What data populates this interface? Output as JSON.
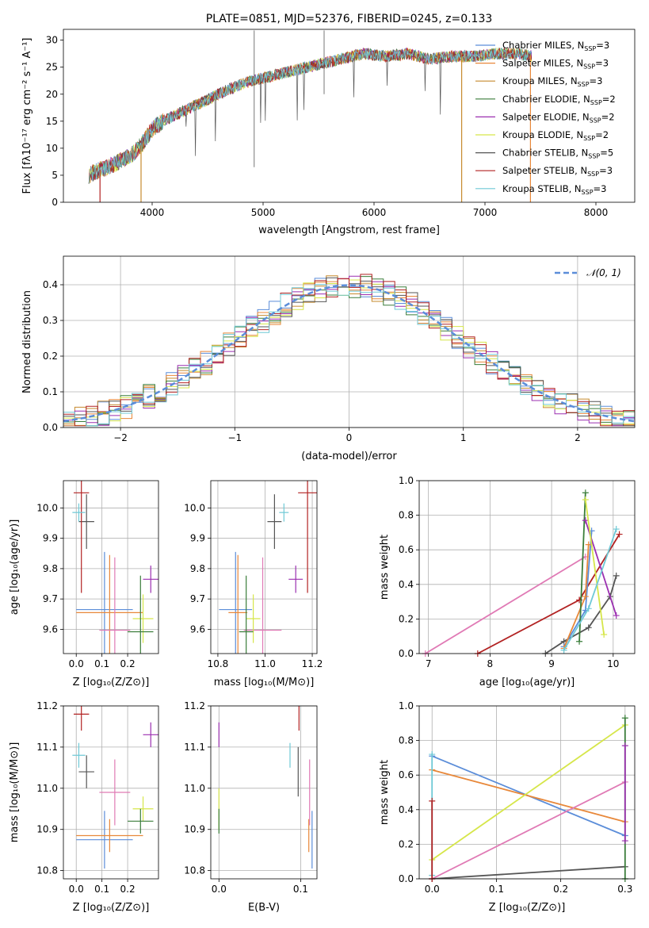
{
  "colors": {
    "Chabrier MILES": "#5b8dd9",
    "Salpeter MILES": "#e8883a",
    "Kroupa MILES": "#c68a2e",
    "Chabrier ELODIE": "#3a7d3a",
    "Salpeter ELODIE": "#9b2fb0",
    "Kroupa ELODIE": "#d6e64a",
    "Chabrier STELIB": "#555555",
    "Salpeter STELIB": "#b22222",
    "Kroupa STELIB": "#6fc9d6",
    "pink": "#e07ab5",
    "normal": "#5b8dd9",
    "grid": "#b0b0b0"
  },
  "chart_data": [
    {
      "id": "spectrum",
      "type": "line",
      "title": "PLATE=0851, MJD=52376, FIBERID=0245, z=0.133",
      "xlabel": "wavelength [Angstrom, rest frame]",
      "ylabel": "Flux [fλ10⁻¹⁷ erg cm⁻² s⁻¹ A⁻¹]",
      "xlim": [
        3200,
        8350
      ],
      "ylim": [
        0,
        32
      ],
      "xticks": [
        4000,
        5000,
        6000,
        7000,
        8000
      ],
      "yticks": [
        0,
        5,
        10,
        15,
        20,
        25,
        30
      ],
      "continuum": [
        [
          3430,
          5.0
        ],
        [
          3500,
          5.8
        ],
        [
          3600,
          6.5
        ],
        [
          3700,
          7.5
        ],
        [
          3800,
          8.5
        ],
        [
          3900,
          10.5
        ],
        [
          4000,
          13.5
        ],
        [
          4100,
          15
        ],
        [
          4200,
          16
        ],
        [
          4300,
          17
        ],
        [
          4500,
          19
        ],
        [
          4700,
          21
        ],
        [
          4900,
          22.5
        ],
        [
          5100,
          23.5
        ],
        [
          5300,
          24.5
        ],
        [
          5500,
          25.5
        ],
        [
          5700,
          26.5
        ],
        [
          5900,
          27.5
        ],
        [
          6100,
          27
        ],
        [
          6300,
          27.5
        ],
        [
          6500,
          26.5
        ],
        [
          6700,
          27
        ],
        [
          6900,
          27
        ],
        [
          7100,
          27.5
        ],
        [
          7300,
          27.5
        ],
        [
          7420,
          27
        ]
      ],
      "series_names": [
        "Chabrier MILES, N_SSP=3",
        "Salpeter MILES, N_SSP=3",
        "Kroupa MILES, N_SSP=3",
        "Chabrier ELODIE, N_SSP=2",
        "Salpeter ELODIE, N_SSP=2",
        "Kroupa ELODIE, N_SSP=2",
        "Chabrier STELIB, N_SSP=5",
        "Salpeter STELIB, N_SSP=3",
        "Kroupa STELIB, N_SSP=3"
      ]
    },
    {
      "id": "hist",
      "type": "histogram",
      "xlabel": "(data-model)/error",
      "ylabel": "Normed distribution",
      "xlim": [
        -2.5,
        2.5
      ],
      "ylim": [
        0,
        0.48
      ],
      "xticks": [
        -2,
        -1,
        0,
        1,
        2
      ],
      "yticks": [
        0.0,
        0.1,
        0.2,
        0.3,
        0.4
      ],
      "legend": "𝒩(0, 1)",
      "bin_width": 0.1
    },
    {
      "id": "age-vs-z",
      "type": "errorbar",
      "xlabel": "Z [log₁₀(Z/Z⊙)]",
      "ylabel": "age  [log₁₀(age/yr)]",
      "xlim": [
        -0.05,
        0.32
      ],
      "ylim": [
        9.52,
        10.09
      ],
      "xticks": [
        0.0,
        0.1,
        0.2
      ],
      "yticks": [
        9.6,
        9.7,
        9.8,
        9.9,
        10.0
      ],
      "points": [
        {
          "c": "#5b8dd9",
          "x": 0.11,
          "y": 9.665,
          "xe": 0.11,
          "ye": 0.19
        },
        {
          "c": "#e8883a",
          "x": 0.13,
          "y": 9.655,
          "xe": 0.13,
          "ye": 0.19
        },
        {
          "c": "#e07ab5",
          "x": 0.15,
          "y": 9.597,
          "xe": 0.06,
          "ye": 0.24
        },
        {
          "c": "#9b2fb0",
          "x": 0.29,
          "y": 9.765,
          "xe": 0.03,
          "ye": 0.045
        },
        {
          "c": "#d6e64a",
          "x": 0.26,
          "y": 9.635,
          "xe": 0.04,
          "ye": 0.08
        },
        {
          "c": "#3a7d3a",
          "x": 0.25,
          "y": 9.592,
          "xe": 0.05,
          "ye": 0.185
        },
        {
          "c": "#555555",
          "x": 0.04,
          "y": 9.955,
          "xe": 0.03,
          "ye": 0.09
        },
        {
          "c": "#b22222",
          "x": 0.02,
          "y": 10.05,
          "xe": 0.03,
          "ye": 0.33
        },
        {
          "c": "#6fc9d6",
          "x": 0.01,
          "y": 9.985,
          "xe": 0.025,
          "ye": 0.03
        }
      ]
    },
    {
      "id": "age-vs-mass",
      "type": "errorbar",
      "xlabel": "mass [log₁₀(M/M⊙)]",
      "ylabel": "",
      "xlim": [
        10.77,
        11.22
      ],
      "ylim": [
        9.52,
        10.09
      ],
      "xticks": [
        10.8,
        11.0,
        11.2
      ],
      "yticks": [
        9.6,
        9.7,
        9.8,
        9.9,
        10.0
      ],
      "points": [
        {
          "c": "#5b8dd9",
          "x": 10.875,
          "y": 9.665,
          "xe": 0.07,
          "ye": 0.19
        },
        {
          "c": "#e8883a",
          "x": 10.885,
          "y": 9.655,
          "xe": 0.04,
          "ye": 0.19
        },
        {
          "c": "#e07ab5",
          "x": 10.99,
          "y": 9.597,
          "xe": 0.08,
          "ye": 0.24
        },
        {
          "c": "#9b2fb0",
          "x": 11.13,
          "y": 9.765,
          "xe": 0.03,
          "ye": 0.045
        },
        {
          "c": "#d6e64a",
          "x": 10.95,
          "y": 9.635,
          "xe": 0.03,
          "ye": 0.08
        },
        {
          "c": "#3a7d3a",
          "x": 10.92,
          "y": 9.592,
          "xe": 0.03,
          "ye": 0.185
        },
        {
          "c": "#555555",
          "x": 11.04,
          "y": 9.955,
          "xe": 0.03,
          "ye": 0.09
        },
        {
          "c": "#b22222",
          "x": 11.18,
          "y": 10.05,
          "xe": 0.04,
          "ye": 0.33
        },
        {
          "c": "#6fc9d6",
          "x": 11.08,
          "y": 9.985,
          "xe": 0.02,
          "ye": 0.03
        }
      ]
    },
    {
      "id": "weight-vs-age",
      "type": "line",
      "xlabel": "age  [log₁₀(age/yr)]",
      "ylabel": "mass weight",
      "xlim": [
        6.85,
        10.35
      ],
      "ylim": [
        0,
        1.0
      ],
      "xticks": [
        7,
        8,
        9,
        10
      ],
      "yticks": [
        0.0,
        0.2,
        0.4,
        0.6,
        0.8,
        1.0
      ],
      "series": [
        {
          "c": "#e07ab5",
          "x": [
            6.95,
            9.55
          ],
          "y": [
            0.0,
            0.56
          ]
        },
        {
          "c": "#b22222",
          "x": [
            7.8,
            9.45,
            10.1
          ],
          "y": [
            0.0,
            0.31,
            0.69
          ]
        },
        {
          "c": "#555555",
          "x": [
            8.9,
            9.2,
            9.6,
            9.95,
            10.05
          ],
          "y": [
            0.0,
            0.07,
            0.15,
            0.33,
            0.45
          ]
        },
        {
          "c": "#5b8dd9",
          "x": [
            9.2,
            9.55,
            9.65
          ],
          "y": [
            0.04,
            0.25,
            0.71
          ]
        },
        {
          "c": "#e8883a",
          "x": [
            9.2,
            9.55,
            9.6
          ],
          "y": [
            0.03,
            0.33,
            0.63
          ]
        },
        {
          "c": "#3a7d3a",
          "x": [
            9.45,
            9.55
          ],
          "y": [
            0.07,
            0.93
          ]
        },
        {
          "c": "#9b2fb0",
          "x": [
            9.55,
            10.05
          ],
          "y": [
            0.77,
            0.22
          ]
        },
        {
          "c": "#d6e64a",
          "x": [
            9.55,
            9.85
          ],
          "y": [
            0.89,
            0.11
          ]
        },
        {
          "c": "#6fc9d6",
          "x": [
            9.2,
            9.6,
            10.05
          ],
          "y": [
            0.02,
            0.26,
            0.72
          ]
        }
      ]
    },
    {
      "id": "mass-vs-z",
      "type": "errorbar",
      "xlabel": "Z [log₁₀(Z/Z⊙)]",
      "ylabel": "mass [log₁₀(M/M⊙)]",
      "xlim": [
        -0.05,
        0.32
      ],
      "ylim": [
        10.78,
        11.2
      ],
      "xticks": [
        0.0,
        0.1,
        0.2
      ],
      "yticks": [
        10.8,
        10.9,
        11.0,
        11.1,
        11.2
      ],
      "points": [
        {
          "c": "#5b8dd9",
          "x": 0.11,
          "y": 10.875,
          "xe": 0.11,
          "ye": 0.07
        },
        {
          "c": "#e8883a",
          "x": 0.13,
          "y": 10.885,
          "xe": 0.13,
          "ye": 0.04
        },
        {
          "c": "#e07ab5",
          "x": 0.15,
          "y": 10.99,
          "xe": 0.06,
          "ye": 0.08
        },
        {
          "c": "#9b2fb0",
          "x": 0.29,
          "y": 11.13,
          "xe": 0.03,
          "ye": 0.03
        },
        {
          "c": "#d6e64a",
          "x": 0.26,
          "y": 10.95,
          "xe": 0.04,
          "ye": 0.03
        },
        {
          "c": "#3a7d3a",
          "x": 0.25,
          "y": 10.92,
          "xe": 0.05,
          "ye": 0.03
        },
        {
          "c": "#555555",
          "x": 0.04,
          "y": 11.04,
          "xe": 0.03,
          "ye": 0.04
        },
        {
          "c": "#b22222",
          "x": 0.02,
          "y": 11.18,
          "xe": 0.03,
          "ye": 0.04
        },
        {
          "c": "#6fc9d6",
          "x": 0.01,
          "y": 11.08,
          "xe": 0.025,
          "ye": 0.03
        }
      ]
    },
    {
      "id": "mass-vs-ebv",
      "type": "errorbar",
      "xlabel": "E(B-V)",
      "ylabel": "",
      "xlim": [
        -0.01,
        0.12
      ],
      "ylim": [
        10.78,
        11.2
      ],
      "xticks": [
        0.0,
        0.1
      ],
      "yticks": [
        10.8,
        10.9,
        11.0,
        11.1,
        11.2
      ],
      "points": [
        {
          "c": "#5b8dd9",
          "x": 0.114,
          "y": 10.875,
          "xe": 0,
          "ye": 0.07
        },
        {
          "c": "#e8883a",
          "x": 0.11,
          "y": 10.885,
          "xe": 0,
          "ye": 0.04
        },
        {
          "c": "#e07ab5",
          "x": 0.111,
          "y": 10.99,
          "xe": 0,
          "ye": 0.08
        },
        {
          "c": "#9b2fb0",
          "x": 0.0,
          "y": 11.13,
          "xe": 0,
          "ye": 0.03
        },
        {
          "c": "#d6e64a",
          "x": 0.0,
          "y": 10.95,
          "xe": 0,
          "ye": 0.05
        },
        {
          "c": "#3a7d3a",
          "x": 0.0,
          "y": 10.92,
          "xe": 0,
          "ye": 0.03
        },
        {
          "c": "#555555",
          "x": 0.097,
          "y": 11.04,
          "xe": 0,
          "ye": 0.06
        },
        {
          "c": "#b22222",
          "x": 0.098,
          "y": 11.18,
          "xe": 0,
          "ye": 0.04
        },
        {
          "c": "#6fc9d6",
          "x": 0.087,
          "y": 11.08,
          "xe": 0,
          "ye": 0.03
        }
      ]
    },
    {
      "id": "weight-vs-z",
      "type": "line",
      "xlabel": "Z [log₁₀(Z/Z⊙)]",
      "ylabel": "mass weight",
      "xlim": [
        -0.02,
        0.315
      ],
      "ylim": [
        0,
        1.0
      ],
      "xticks": [
        0.0,
        0.1,
        0.2,
        0.3
      ],
      "yticks": [
        0.0,
        0.2,
        0.4,
        0.6,
        0.8,
        1.0
      ],
      "series": [
        {
          "c": "#5b8dd9",
          "x": [
            0.0,
            0.3
          ],
          "y": [
            0.71,
            0.25
          ]
        },
        {
          "c": "#e8883a",
          "x": [
            0.0,
            0.3
          ],
          "y": [
            0.63,
            0.33
          ]
        },
        {
          "c": "#d6e64a",
          "x": [
            0.0,
            0.3
          ],
          "y": [
            0.11,
            0.89
          ]
        },
        {
          "c": "#e07ab5",
          "x": [
            0.0,
            0.3
          ],
          "y": [
            0.0,
            0.56
          ]
        },
        {
          "c": "#555555",
          "x": [
            0.0,
            0.3
          ],
          "y": [
            0.0,
            0.07
          ]
        },
        {
          "c": "#3a7d3a",
          "x": [
            0.3,
            0.3
          ],
          "y": [
            0.0,
            0.93
          ]
        },
        {
          "c": "#9b2fb0",
          "x": [
            0.3,
            0.3
          ],
          "y": [
            0.22,
            0.77
          ]
        },
        {
          "c": "#6fc9d6",
          "x": [
            0.0,
            0.0
          ],
          "y": [
            0.02,
            0.72
          ]
        },
        {
          "c": "#b22222",
          "x": [
            0.0,
            0.0
          ],
          "y": [
            0.0,
            0.45
          ]
        }
      ]
    }
  ]
}
